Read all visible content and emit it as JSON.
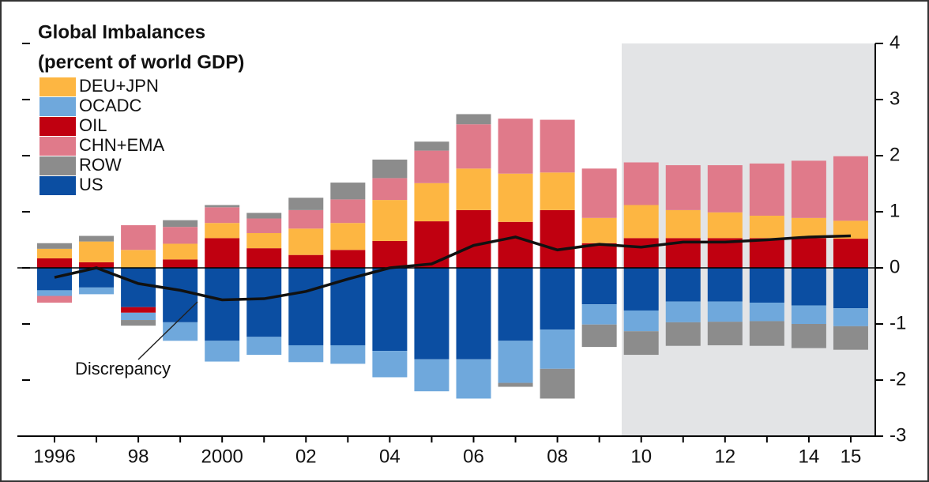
{
  "chart_data": {
    "type": "bar",
    "title": "Global Imbalances",
    "subtitle": "(percent of world GDP)",
    "categories": [
      "1996",
      null,
      "98",
      null,
      "2000",
      null,
      "02",
      null,
      "04",
      null,
      "06",
      null,
      "08",
      null,
      "10",
      null,
      "12",
      null,
      "14",
      "15"
    ],
    "series": [
      {
        "name": "DEU+JPN",
        "color": "#fdb642",
        "values": [
          0.17,
          0.37,
          0.32,
          0.28,
          0.27,
          0.27,
          0.47,
          0.48,
          0.73,
          0.68,
          0.74,
          0.86,
          0.67,
          0.45,
          0.59,
          0.5,
          0.46,
          0.4,
          0.36,
          0.32
        ]
      },
      {
        "name": "OCADC",
        "color": "#6fa8dc",
        "values": [
          -0.1,
          -0.12,
          -0.13,
          -0.33,
          -0.37,
          -0.32,
          -0.3,
          -0.33,
          -0.47,
          -0.57,
          -0.7,
          -0.75,
          -0.7,
          -0.36,
          -0.37,
          -0.37,
          -0.36,
          -0.33,
          -0.33,
          -0.32
        ]
      },
      {
        "name": "OIL",
        "color": "#c00010",
        "values": [
          0.17,
          0.1,
          -0.1,
          0.15,
          0.53,
          0.35,
          0.23,
          0.32,
          0.48,
          0.83,
          1.03,
          0.82,
          1.03,
          0.44,
          0.53,
          0.53,
          0.53,
          0.53,
          0.53,
          0.52
        ]
      },
      {
        "name": "CHN+EMA",
        "color": "#e07a8a",
        "values": [
          -0.12,
          0,
          0.44,
          0.3,
          0.28,
          0.26,
          0.33,
          0.42,
          0.39,
          0.58,
          0.79,
          0.98,
          0.94,
          0.88,
          0.76,
          0.8,
          0.84,
          0.93,
          1.02,
          1.15
        ]
      },
      {
        "name": "ROW",
        "color": "#8c8c8c",
        "values": [
          0.1,
          0.1,
          -0.1,
          0.12,
          0.04,
          0.1,
          0.22,
          0.3,
          0.33,
          0.16,
          0.18,
          -0.07,
          -0.53,
          -0.4,
          -0.42,
          -0.42,
          -0.42,
          -0.44,
          -0.43,
          -0.42
        ]
      },
      {
        "name": "US",
        "color": "#0b4ea2",
        "values": [
          -0.4,
          -0.35,
          -0.7,
          -0.97,
          -1.3,
          -1.23,
          -1.38,
          -1.38,
          -1.48,
          -1.63,
          -1.63,
          -1.3,
          -1.1,
          -0.65,
          -0.76,
          -0.6,
          -0.6,
          -0.62,
          -0.67,
          -0.72
        ]
      }
    ],
    "line": {
      "name": "Discrepancy",
      "color": "#111111",
      "values": [
        -0.17,
        0,
        -0.28,
        -0.4,
        -0.57,
        -0.55,
        -0.42,
        -0.2,
        0,
        0.07,
        0.4,
        0.55,
        0.32,
        0.42,
        0.37,
        0.46,
        0.46,
        0.5,
        0.55,
        0.57
      ]
    },
    "ylim": [
      -3,
      4
    ],
    "yticks": [
      -3,
      -2,
      -1,
      0,
      1,
      2,
      3,
      4
    ]
  }
}
